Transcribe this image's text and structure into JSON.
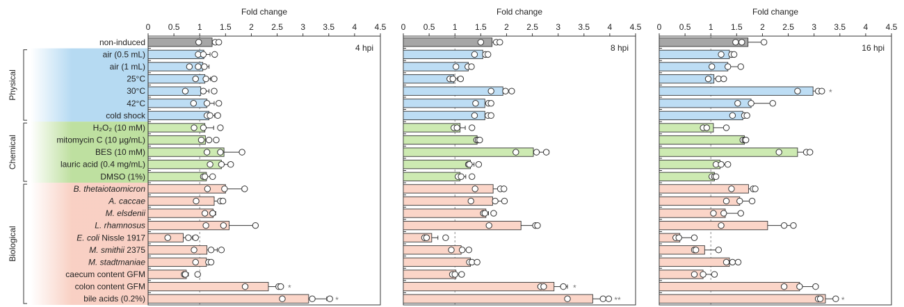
{
  "chart_data": {
    "type": "bar",
    "orientation": "horizontal",
    "xlabel": "Fold change",
    "xlim": [
      0,
      4.5
    ],
    "xticks": [
      "0",
      "0.5",
      "1",
      "1.5",
      "2",
      "2.5",
      "3",
      "3.5",
      "4",
      "4.5"
    ],
    "reference_line": 1,
    "grid": false,
    "categories": [
      "non-induced",
      "air (0.5 mL)",
      "air (1 mL)",
      "25°C",
      "30°C",
      "42°C",
      "cold shock",
      "H₂O₂ (10 mM)",
      "mitomycin C (10 µg/mL)",
      "BES (10 mM)",
      "lauric acid (0.4 mg/mL)",
      "DMSO (1%)",
      "B. thetaiotaomicron",
      "A. caccae",
      "M. elsdenii",
      "L. rhamnosus",
      "E. coli Nissle 1917",
      "M. smithii 2375",
      "M. stadtmaniae",
      "caecum content GFM",
      "colon content GFM",
      "bile acids (0.2%)"
    ],
    "label_parts": [
      [
        {
          "t": "non-induced",
          "i": false
        }
      ],
      [
        {
          "t": "air (0.5 mL)",
          "i": false
        }
      ],
      [
        {
          "t": "air (1 mL)",
          "i": false
        }
      ],
      [
        {
          "t": "25°C",
          "i": false
        }
      ],
      [
        {
          "t": "30°C",
          "i": false
        }
      ],
      [
        {
          "t": "42°C",
          "i": false
        }
      ],
      [
        {
          "t": "cold shock",
          "i": false
        }
      ],
      [
        {
          "t": "H₂O₂ (10 mM)",
          "i": false
        }
      ],
      [
        {
          "t": "mitomycin C (10 µg/mL)",
          "i": false
        }
      ],
      [
        {
          "t": "BES (10 mM)",
          "i": false
        }
      ],
      [
        {
          "t": "lauric acid (0.4 mg/mL)",
          "i": false
        }
      ],
      [
        {
          "t": "DMSO (1%)",
          "i": false
        }
      ],
      [
        {
          "t": "B. thetaiotaomicron",
          "i": true
        }
      ],
      [
        {
          "t": "A. caccae",
          "i": true
        }
      ],
      [
        {
          "t": "M. elsdenii",
          "i": true
        }
      ],
      [
        {
          "t": "L. rhamnosus",
          "i": true
        }
      ],
      [
        {
          "t": "E. coli",
          "i": true
        },
        {
          "t": " Nissle 1917",
          "i": false
        }
      ],
      [
        {
          "t": "M. smithii",
          "i": true
        },
        {
          "t": " 2375",
          "i": false
        }
      ],
      [
        {
          "t": "M. stadtmaniae",
          "i": true
        }
      ],
      [
        {
          "t": "caecum content GFM",
          "i": false
        }
      ],
      [
        {
          "t": "colon content GFM",
          "i": false
        }
      ],
      [
        {
          "t": "bile acids (0.2%)",
          "i": false
        }
      ]
    ],
    "category_group": [
      "none",
      "physical",
      "physical",
      "physical",
      "physical",
      "physical",
      "physical",
      "chemical",
      "chemical",
      "chemical",
      "chemical",
      "chemical",
      "biological",
      "biological",
      "biological",
      "biological",
      "biological",
      "biological",
      "biological",
      "biological",
      "biological",
      "biological"
    ],
    "groups": [
      {
        "name": "Physical",
        "first": 1,
        "last": 6
      },
      {
        "name": "Chemical",
        "first": 7,
        "last": 11
      },
      {
        "name": "Biological",
        "first": 12,
        "last": 21
      }
    ],
    "colors": {
      "none": "#a6a6a6",
      "physical": "#bdddf4",
      "chemical": "#cdeab2",
      "biological": "#fbd5c8",
      "physical_band": "#aed6f1",
      "chemical_band": "#b7dc95",
      "biological_band": "#f8cbbd",
      "outline": "#333333",
      "reference": "#888888"
    },
    "panels": [
      {
        "name": "4 hpi",
        "values": [
          1.24,
          1.08,
          1.06,
          1.1,
          1.02,
          1.14,
          1.18,
          1.1,
          1.11,
          1.47,
          1.42,
          1.13,
          1.5,
          1.28,
          1.26,
          1.57,
          0.68,
          1.14,
          1.13,
          0.74,
          2.33,
          3.11
        ],
        "errors": [
          0.06,
          0.12,
          0.12,
          0.11,
          0.16,
          0.14,
          0.11,
          0.17,
          0.1,
          0.32,
          0.13,
          0.1,
          0.32,
          0.1,
          0.05,
          0.48,
          0.18,
          0.2,
          0.05,
          0.04,
          0.27,
          0.35
        ],
        "points": [
          [
            0.98,
            1.3,
            1.37
          ],
          [
            0.97,
            1.07,
            1.29
          ],
          [
            0.8,
            0.97,
            1.09
          ],
          [
            0.92,
            1.12,
            1.28
          ],
          [
            0.72,
            1.07,
            1.28
          ],
          [
            0.88,
            1.14,
            1.37
          ],
          [
            1.14,
            1.2,
            1.35
          ],
          [
            0.89,
            1.07,
            1.4
          ],
          [
            1.03,
            1.18,
            1.32
          ],
          [
            1.14,
            1.4,
            1.82
          ],
          [
            1.2,
            1.42,
            1.6
          ],
          [
            1.07,
            1.1,
            1.25
          ],
          [
            1.15,
            1.48,
            1.87
          ],
          [
            0.93,
            1.4,
            1.45
          ],
          [
            1.1,
            1.25,
            1.25
          ],
          [
            1.12,
            1.46,
            2.08
          ],
          [
            0.38,
            0.78,
            0.92
          ],
          [
            0.89,
            1.22,
            1.42
          ],
          [
            0.92,
            1.17,
            1.22
          ],
          [
            0.7,
            0.72,
            0.96
          ],
          [
            1.88,
            2.53,
            2.57
          ],
          [
            2.6,
            3.18,
            3.52
          ]
        ],
        "sig": {
          "20": "*",
          "21": "*"
        }
      },
      {
        "name": "8 hpi",
        "values": [
          1.72,
          1.54,
          1.26,
          0.98,
          1.93,
          1.58,
          1.58,
          1.1,
          1.43,
          2.52,
          1.3,
          1.1,
          1.74,
          1.73,
          1.6,
          2.28,
          0.55,
          1.12,
          1.3,
          1.02,
          2.92,
          3.67
        ],
        "errors": [
          0.13,
          0.09,
          0.08,
          0.07,
          0.18,
          0.1,
          0.12,
          0.1,
          0.06,
          0.3,
          0.07,
          0.11,
          0.2,
          0.24,
          0.05,
          0.3,
          0.12,
          0.15,
          0.06,
          0.06,
          0.26,
          0.28
        ],
        "points": [
          [
            1.5,
            1.8,
            1.87
          ],
          [
            1.38,
            1.59,
            1.64
          ],
          [
            1.02,
            1.25,
            1.32
          ],
          [
            0.9,
            0.96,
            1.11
          ],
          [
            1.7,
            1.98,
            2.1
          ],
          [
            1.4,
            1.65,
            1.7
          ],
          [
            1.38,
            1.64,
            1.7
          ],
          [
            0.98,
            1.04,
            1.33
          ],
          [
            1.42,
            1.45,
            1.48
          ],
          [
            2.18,
            2.58,
            2.77
          ],
          [
            1.26,
            1.28,
            1.46
          ],
          [
            1.06,
            1.12,
            1.33
          ],
          [
            1.39,
            1.88,
            1.95
          ],
          [
            1.31,
            1.78,
            1.96
          ],
          [
            1.55,
            1.58,
            1.75
          ],
          [
            1.66,
            2.56,
            2.6
          ],
          [
            0.41,
            0.45,
            0.82
          ],
          [
            0.93,
            1.14,
            1.27
          ],
          [
            1.28,
            1.33,
            1.43
          ],
          [
            0.95,
            1.0,
            1.13
          ],
          [
            2.66,
            2.72,
            3.1
          ],
          [
            3.18,
            3.87,
            3.98
          ]
        ],
        "sig": {
          "20": "*",
          "21": "**"
        }
      },
      {
        "name": "16 hpi",
        "values": [
          1.72,
          1.36,
          1.33,
          1.06,
          2.98,
          1.78,
          1.62,
          1.05,
          1.65,
          2.68,
          1.18,
          1.07,
          1.73,
          1.56,
          1.28,
          2.1,
          0.4,
          0.88,
          1.36,
          0.85,
          2.72,
          3.22
        ],
        "errors": [
          0.3,
          0.09,
          0.22,
          0.1,
          0.2,
          0.42,
          0.1,
          0.24,
          0.03,
          0.23,
          0.13,
          0.03,
          0.14,
          0.26,
          0.3,
          0.51,
          0.28,
          0.3,
          0.15,
          0.22,
          0.32,
          0.2
        ],
        "points": [
          [
            1.48,
            1.6,
            2.03
          ],
          [
            1.2,
            1.4,
            1.45
          ],
          [
            1.02,
            1.33,
            1.58
          ],
          [
            0.95,
            1.15,
            1.25
          ],
          [
            2.68,
            3.08,
            3.15
          ],
          [
            1.52,
            1.78,
            2.2
          ],
          [
            1.42,
            1.65,
            1.7
          ],
          [
            0.85,
            0.92,
            1.3
          ],
          [
            1.62,
            1.66,
            1.68
          ],
          [
            2.32,
            2.85,
            2.92
          ],
          [
            1.1,
            1.2,
            1.33
          ],
          [
            1.02,
            1.07,
            1.1
          ],
          [
            1.4,
            1.82,
            1.86
          ],
          [
            1.3,
            1.56,
            1.8
          ],
          [
            1.05,
            1.25,
            1.58
          ],
          [
            1.2,
            2.42,
            2.6
          ],
          [
            0.32,
            0.38,
            0.68
          ],
          [
            0.68,
            0.71,
            1.15
          ],
          [
            1.3,
            1.42,
            1.53
          ],
          [
            0.68,
            0.85,
            1.07
          ],
          [
            2.42,
            2.72,
            3.03
          ],
          [
            3.08,
            3.12,
            3.42
          ]
        ],
        "sig": {
          "4": "*",
          "21": "*"
        }
      }
    ]
  }
}
